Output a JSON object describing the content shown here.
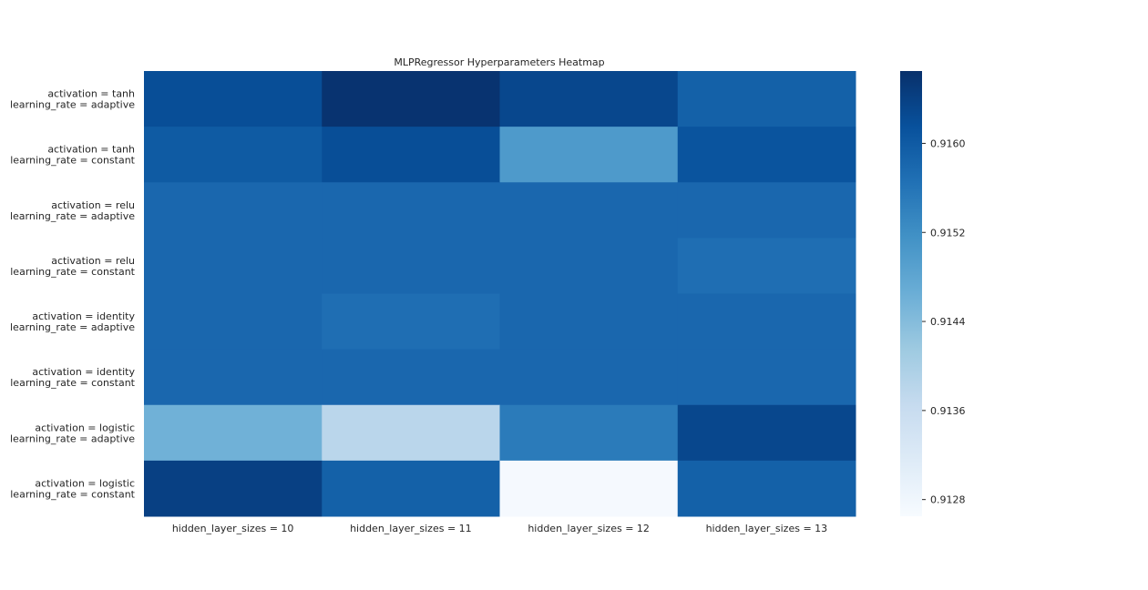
{
  "chart_data": {
    "type": "heatmap",
    "title": "MLPRegressor Hyperparameters Heatmap",
    "xlabel": "",
    "ylabel": "",
    "x_categories": [
      "hidden_layer_sizes = 10",
      "hidden_layer_sizes = 11",
      "hidden_layer_sizes = 12",
      "hidden_layer_sizes = 13"
    ],
    "y_categories": [
      [
        "activation = tanh",
        "learning_rate = adaptive"
      ],
      [
        "activation = tanh",
        "learning_rate = constant"
      ],
      [
        "activation = relu",
        "learning_rate = adaptive"
      ],
      [
        "activation = relu",
        "learning_rate = constant"
      ],
      [
        "activation = identity",
        "learning_rate = adaptive"
      ],
      [
        "activation = identity",
        "learning_rate = constant"
      ],
      [
        "activation = logistic",
        "learning_rate = adaptive"
      ],
      [
        "activation = logistic",
        "learning_rate = constant"
      ]
    ],
    "values": [
      [
        0.9162,
        0.9166,
        0.9163,
        0.9159
      ],
      [
        0.916,
        0.9162,
        0.915,
        0.9161
      ],
      [
        0.9158,
        0.9158,
        0.9158,
        0.9158
      ],
      [
        0.9158,
        0.9158,
        0.9158,
        0.9157
      ],
      [
        0.9158,
        0.9157,
        0.9158,
        0.9158
      ],
      [
        0.9158,
        0.9158,
        0.9158,
        0.9158
      ],
      [
        0.9146,
        0.9138,
        0.9155,
        0.9163
      ],
      [
        0.9164,
        0.9159,
        0.9127,
        0.9159
      ]
    ],
    "colorbar": {
      "min": 0.91265,
      "max": 0.91665,
      "ticks": [
        0.9128,
        0.9136,
        0.9144,
        0.9152,
        0.916
      ],
      "tick_labels": [
        "0.9128",
        "0.9136",
        "0.9144",
        "0.9152",
        "0.9160"
      ],
      "colormap": "Blues"
    },
    "grid": false,
    "legend": "colorbar-right"
  }
}
